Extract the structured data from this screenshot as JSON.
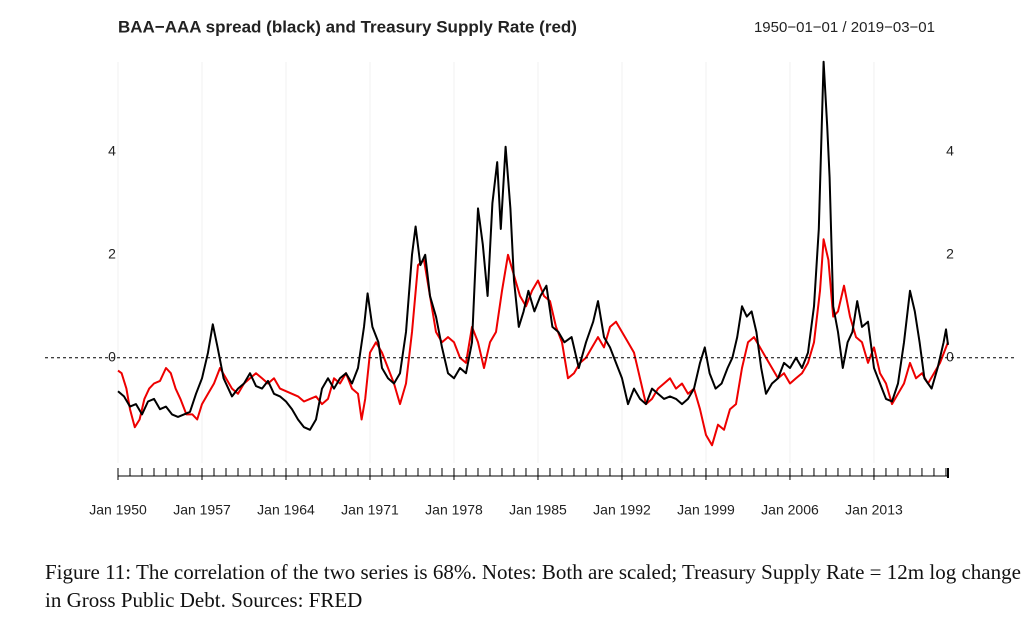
{
  "chart_data": {
    "type": "line",
    "title": "BAA−AAA spread (black) and Treasury Supply Rate (red)",
    "subtitle": "1950−01−01 / 2019−03−01",
    "caption": "Figure 11: The correlation of the two series is 68%. Notes: Both are scaled; Treasury Supply Rate = 12m log change in Gross Public Debt. Sources: FRED",
    "xlim": [
      1950,
      2019.17
    ],
    "ylim": [
      -2.2,
      5.9
    ],
    "yticks": [
      0,
      2,
      4
    ],
    "hline": 0,
    "grid": true,
    "xticks": [
      {
        "value": 1950,
        "label": "Jan 1950"
      },
      {
        "value": 1957,
        "label": "Jan 1957"
      },
      {
        "value": 1964,
        "label": "Jan 1964"
      },
      {
        "value": 1971,
        "label": "Jan 1971"
      },
      {
        "value": 1978,
        "label": "Jan 1978"
      },
      {
        "value": 1985,
        "label": "Jan 1985"
      },
      {
        "value": 1992,
        "label": "Jan 1992"
      },
      {
        "value": 1999,
        "label": "Jan 1999"
      },
      {
        "value": 2006,
        "label": "Jan 2006"
      },
      {
        "value": 2013,
        "label": "Jan 2013"
      }
    ],
    "xminorticks": [
      1950,
      1951,
      1952,
      1953,
      1954,
      1955,
      1956,
      1957,
      1958,
      1959,
      1960,
      1961,
      1962,
      1963,
      1964,
      1965,
      1966,
      1967,
      1968,
      1969,
      1970,
      1971,
      1972,
      1973,
      1974,
      1975,
      1976,
      1977,
      1978,
      1979,
      1980,
      1981,
      1982,
      1983,
      1984,
      1985,
      1986,
      1987,
      1988,
      1989,
      1990,
      1991,
      1992,
      1993,
      1994,
      1995,
      1996,
      1997,
      1998,
      1999,
      2000,
      2001,
      2002,
      2003,
      2004,
      2005,
      2006,
      2007,
      2008,
      2009,
      2010,
      2011,
      2012,
      2013,
      2014,
      2015,
      2016,
      2017,
      2018,
      2019
    ],
    "series": [
      {
        "color": "#ee0000",
        "x": [
          1950.0,
          1950.3,
          1950.7,
          1951.0,
          1951.4,
          1951.8,
          1952.2,
          1952.6,
          1953.0,
          1953.5,
          1954.0,
          1954.4,
          1954.8,
          1955.2,
          1955.7,
          1956.2,
          1956.6,
          1957.0,
          1957.5,
          1958.0,
          1958.5,
          1959.0,
          1959.5,
          1960.0,
          1960.5,
          1961.0,
          1961.5,
          1962.0,
          1962.5,
          1963.0,
          1963.5,
          1964.0,
          1964.5,
          1965.0,
          1965.5,
          1966.0,
          1966.5,
          1967.0,
          1967.5,
          1968.0,
          1968.5,
          1969.0,
          1969.5,
          1970.0,
          1970.3,
          1970.6,
          1971.0,
          1971.5,
          1972.0,
          1972.5,
          1973.0,
          1973.5,
          1974.0,
          1974.5,
          1975.0,
          1975.5,
          1976.0,
          1976.5,
          1977.0,
          1977.5,
          1978.0,
          1978.5,
          1979.0,
          1979.5,
          1980.0,
          1980.5,
          1981.0,
          1981.5,
          1982.0,
          1982.5,
          1983.0,
          1983.5,
          1984.0,
          1984.5,
          1985.0,
          1985.5,
          1986.0,
          1986.5,
          1987.0,
          1987.5,
          1988.0,
          1988.5,
          1989.0,
          1989.5,
          1990.0,
          1990.5,
          1991.0,
          1991.5,
          1992.0,
          1992.5,
          1993.0,
          1993.5,
          1994.0,
          1994.5,
          1995.0,
          1995.5,
          1996.0,
          1996.5,
          1997.0,
          1997.5,
          1998.0,
          1998.5,
          1999.0,
          1999.5,
          2000.0,
          2000.5,
          2001.0,
          2001.5,
          2002.0,
          2002.5,
          2003.0,
          2003.5,
          2004.0,
          2004.5,
          2005.0,
          2005.5,
          2006.0,
          2006.5,
          2007.0,
          2007.5,
          2008.0,
          2008.5,
          2008.8,
          2009.2,
          2009.6,
          2010.0,
          2010.5,
          2011.0,
          2011.5,
          2012.0,
          2012.5,
          2013.0,
          2013.5,
          2014.0,
          2014.5,
          2015.0,
          2015.5,
          2016.0,
          2016.5,
          2017.0,
          2017.5,
          2018.0,
          2018.5,
          2019.0,
          2019.17
        ],
        "values": [
          -0.25,
          -0.3,
          -0.6,
          -1.0,
          -1.35,
          -1.2,
          -0.8,
          -0.6,
          -0.5,
          -0.45,
          -0.2,
          -0.3,
          -0.6,
          -0.8,
          -1.1,
          -1.1,
          -1.2,
          -0.9,
          -0.7,
          -0.5,
          -0.2,
          -0.4,
          -0.6,
          -0.7,
          -0.5,
          -0.4,
          -0.3,
          -0.4,
          -0.5,
          -0.4,
          -0.6,
          -0.65,
          -0.7,
          -0.75,
          -0.85,
          -0.8,
          -0.75,
          -0.9,
          -0.8,
          -0.4,
          -0.5,
          -0.3,
          -0.6,
          -0.7,
          -1.2,
          -0.8,
          0.1,
          0.3,
          0.1,
          -0.2,
          -0.5,
          -0.9,
          -0.5,
          0.5,
          1.8,
          1.9,
          1.2,
          0.5,
          0.3,
          0.4,
          0.3,
          0.0,
          -0.1,
          0.6,
          0.3,
          -0.2,
          0.3,
          0.5,
          1.3,
          2.0,
          1.6,
          1.2,
          1.0,
          1.3,
          1.5,
          1.2,
          1.1,
          0.6,
          0.3,
          -0.4,
          -0.3,
          -0.1,
          0.0,
          0.2,
          0.4,
          0.2,
          0.6,
          0.7,
          0.5,
          0.3,
          0.1,
          -0.4,
          -0.9,
          -0.8,
          -0.6,
          -0.5,
          -0.4,
          -0.6,
          -0.5,
          -0.7,
          -0.6,
          -1.0,
          -1.5,
          -1.7,
          -1.3,
          -1.4,
          -1.0,
          -0.9,
          -0.2,
          0.3,
          0.4,
          0.2,
          0.0,
          -0.2,
          -0.4,
          -0.3,
          -0.5,
          -0.4,
          -0.3,
          -0.1,
          0.3,
          1.3,
          2.3,
          1.9,
          0.8,
          0.9,
          1.4,
          0.8,
          0.4,
          0.3,
          -0.1,
          0.2,
          -0.3,
          -0.5,
          -0.9,
          -0.7,
          -0.5,
          -0.1,
          -0.4,
          -0.3,
          -0.5,
          -0.3,
          -0.1,
          0.2,
          0.3
        ]
      },
      {
        "color": "#000000",
        "x": [
          1950.0,
          1950.5,
          1951.0,
          1951.5,
          1952.0,
          1952.5,
          1953.0,
          1953.5,
          1954.0,
          1954.5,
          1955.0,
          1955.5,
          1956.0,
          1956.5,
          1957.0,
          1957.5,
          1957.9,
          1958.3,
          1958.8,
          1959.5,
          1960.0,
          1960.5,
          1961.0,
          1961.5,
          1962.0,
          1962.5,
          1963.0,
          1963.5,
          1964.0,
          1964.5,
          1965.0,
          1965.5,
          1966.0,
          1966.5,
          1967.0,
          1967.5,
          1968.0,
          1968.5,
          1969.0,
          1969.5,
          1970.0,
          1970.5,
          1970.8,
          1971.2,
          1971.7,
          1972.0,
          1972.5,
          1973.0,
          1973.5,
          1974.0,
          1974.5,
          1974.8,
          1975.2,
          1975.6,
          1976.0,
          1976.5,
          1977.0,
          1977.5,
          1978.0,
          1978.5,
          1979.0,
          1979.5,
          1980.0,
          1980.4,
          1980.8,
          1981.2,
          1981.6,
          1981.9,
          1982.3,
          1982.7,
          1983.0,
          1983.4,
          1983.8,
          1984.2,
          1984.7,
          1985.2,
          1985.7,
          1986.2,
          1986.7,
          1987.2,
          1987.8,
          1988.4,
          1989.0,
          1989.6,
          1990.0,
          1990.5,
          1991.0,
          1991.5,
          1992.0,
          1992.5,
          1993.0,
          1993.5,
          1994.0,
          1994.5,
          1995.0,
          1995.5,
          1996.0,
          1996.5,
          1997.0,
          1997.5,
          1998.0,
          1998.5,
          1998.9,
          1999.3,
          1999.8,
          2000.3,
          2000.8,
          2001.2,
          2001.6,
          2002.0,
          2002.4,
          2002.8,
          2003.2,
          2003.6,
          2004.0,
          2004.5,
          2005.0,
          2005.5,
          2006.0,
          2006.5,
          2007.0,
          2007.5,
          2008.0,
          2008.4,
          2008.8,
          2009.1,
          2009.3,
          2009.6,
          2010.0,
          2010.4,
          2010.8,
          2011.2,
          2011.6,
          2012.0,
          2012.5,
          2013.0,
          2013.5,
          2014.0,
          2014.5,
          2015.0,
          2015.5,
          2016.0,
          2016.4,
          2016.8,
          2017.2,
          2017.8,
          2018.3,
          2018.8,
          2019.0,
          2019.17
        ],
        "values": [
          -0.65,
          -0.75,
          -0.95,
          -0.9,
          -1.1,
          -0.85,
          -0.8,
          -1.0,
          -0.95,
          -1.1,
          -1.15,
          -1.1,
          -1.05,
          -0.7,
          -0.4,
          0.1,
          0.65,
          0.2,
          -0.4,
          -0.75,
          -0.6,
          -0.5,
          -0.3,
          -0.55,
          -0.6,
          -0.45,
          -0.7,
          -0.75,
          -0.85,
          -1.0,
          -1.2,
          -1.35,
          -1.4,
          -1.2,
          -0.6,
          -0.4,
          -0.6,
          -0.4,
          -0.3,
          -0.5,
          -0.2,
          0.6,
          1.25,
          0.6,
          0.3,
          -0.2,
          -0.4,
          -0.5,
          -0.3,
          0.5,
          2.0,
          2.55,
          1.8,
          2.0,
          1.2,
          0.8,
          0.2,
          -0.3,
          -0.4,
          -0.2,
          -0.3,
          0.3,
          2.9,
          2.2,
          1.2,
          3.0,
          3.8,
          2.5,
          4.1,
          2.9,
          1.5,
          0.6,
          0.9,
          1.3,
          0.9,
          1.2,
          1.4,
          0.6,
          0.5,
          0.3,
          0.4,
          -0.2,
          0.3,
          0.7,
          1.1,
          0.4,
          0.2,
          -0.1,
          -0.4,
          -0.9,
          -0.6,
          -0.8,
          -0.9,
          -0.6,
          -0.7,
          -0.8,
          -0.75,
          -0.8,
          -0.9,
          -0.8,
          -0.6,
          -0.1,
          0.2,
          -0.3,
          -0.6,
          -0.5,
          -0.2,
          0.0,
          0.4,
          1.0,
          0.8,
          0.9,
          0.5,
          -0.2,
          -0.7,
          -0.5,
          -0.4,
          -0.1,
          -0.2,
          0.0,
          -0.2,
          0.1,
          1.0,
          2.5,
          5.75,
          4.5,
          3.5,
          1.0,
          0.5,
          -0.2,
          0.3,
          0.5,
          1.1,
          0.6,
          0.7,
          -0.2,
          -0.5,
          -0.8,
          -0.85,
          -0.5,
          0.3,
          1.3,
          0.9,
          0.3,
          -0.4,
          -0.6,
          -0.2,
          0.3,
          0.55,
          0.25
        ]
      }
    ]
  }
}
